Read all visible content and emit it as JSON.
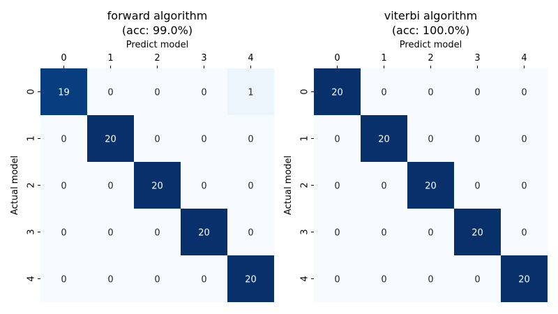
{
  "chart_data": [
    {
      "type": "heatmap",
      "title": "forward algorithm\n(acc: 99.0%)",
      "xlabel": "Predict model",
      "ylabel": "Actual model",
      "x_ticks": [
        "0",
        "1",
        "2",
        "3",
        "4"
      ],
      "y_ticks": [
        "0",
        "1",
        "2",
        "3",
        "4"
      ],
      "matrix": [
        [
          19,
          0,
          0,
          0,
          1
        ],
        [
          0,
          20,
          0,
          0,
          0
        ],
        [
          0,
          0,
          20,
          0,
          0
        ],
        [
          0,
          0,
          0,
          20,
          0
        ],
        [
          0,
          0,
          0,
          0,
          20
        ]
      ],
      "value_range": [
        0,
        20
      ],
      "colormap": "Blues",
      "colorbar": false,
      "x_axis_position": "top"
    },
    {
      "type": "heatmap",
      "title": "viterbi algorithm\n(acc: 100.0%)",
      "xlabel": "Predict model",
      "ylabel": "Actual model",
      "x_ticks": [
        "0",
        "1",
        "2",
        "3",
        "4"
      ],
      "y_ticks": [
        "0",
        "1",
        "2",
        "3",
        "4"
      ],
      "matrix": [
        [
          20,
          0,
          0,
          0,
          0
        ],
        [
          0,
          20,
          0,
          0,
          0
        ],
        [
          0,
          0,
          20,
          0,
          0
        ],
        [
          0,
          0,
          0,
          20,
          0
        ],
        [
          0,
          0,
          0,
          0,
          20
        ]
      ],
      "value_range": [
        0,
        20
      ],
      "colormap": "Blues",
      "colorbar": false,
      "x_axis_position": "top"
    }
  ]
}
